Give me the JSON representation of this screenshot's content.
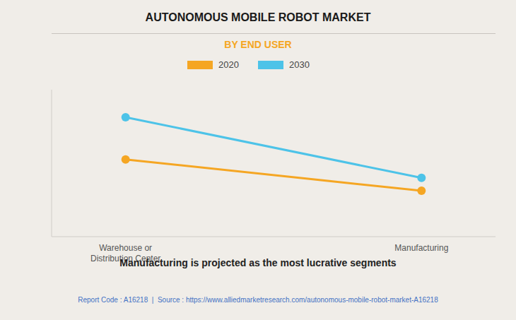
{
  "chart_data": {
    "type": "line",
    "title": "AUTONOMOUS MOBILE ROBOT MARKET",
    "subtitle": "BY END USER",
    "categories": [
      "Warehouse or\nDistribution Center",
      "Manufacturing"
    ],
    "series": [
      {
        "name": "2020",
        "color": "#F5A623",
        "values": [
          0.72,
          0.55
        ]
      },
      {
        "name": "2030",
        "color": "#4DC3E8",
        "values": [
          0.95,
          0.62
        ]
      }
    ],
    "ylim": [
      0.3,
      1.1
    ],
    "grid": false,
    "tick_labels": "x",
    "legend": "top",
    "marker": "circle",
    "caption": "Manufacturing is projected as the most lucrative segments",
    "source": "Report Code : A16218  |  Source : https://www.alliedmarketresearch.com/autonomous-mobile-robot-market-A16218"
  }
}
